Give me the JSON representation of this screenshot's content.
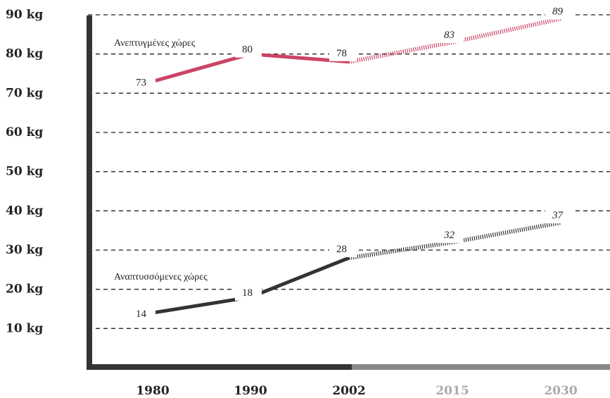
{
  "chart_data": {
    "type": "line",
    "categories": [
      "1980",
      "1990",
      "2002",
      "2015",
      "2030"
    ],
    "projected_categories": [
      "2015",
      "2030"
    ],
    "y_tick_labels": [
      "10 kg",
      "20 kg",
      "30 kg",
      "40 kg",
      "50 kg",
      "60 kg",
      "70 kg",
      "80 kg",
      "90 kg"
    ],
    "ylim": [
      0,
      90
    ],
    "grid": true,
    "series": [
      {
        "name": "Ανεπτυγμένες χώρες",
        "values": [
          73,
          80,
          78,
          83,
          89
        ],
        "color": "#cc4466"
      },
      {
        "name": "Αναπτυσσόμενες χώρες",
        "values": [
          14,
          18,
          28,
          32,
          37
        ],
        "color": "#333333"
      }
    ],
    "colors": {
      "axis": "#333333",
      "axis_projected": "#888888",
      "tick_actual": "#222222",
      "tick_projected": "#aaaaaa"
    }
  }
}
